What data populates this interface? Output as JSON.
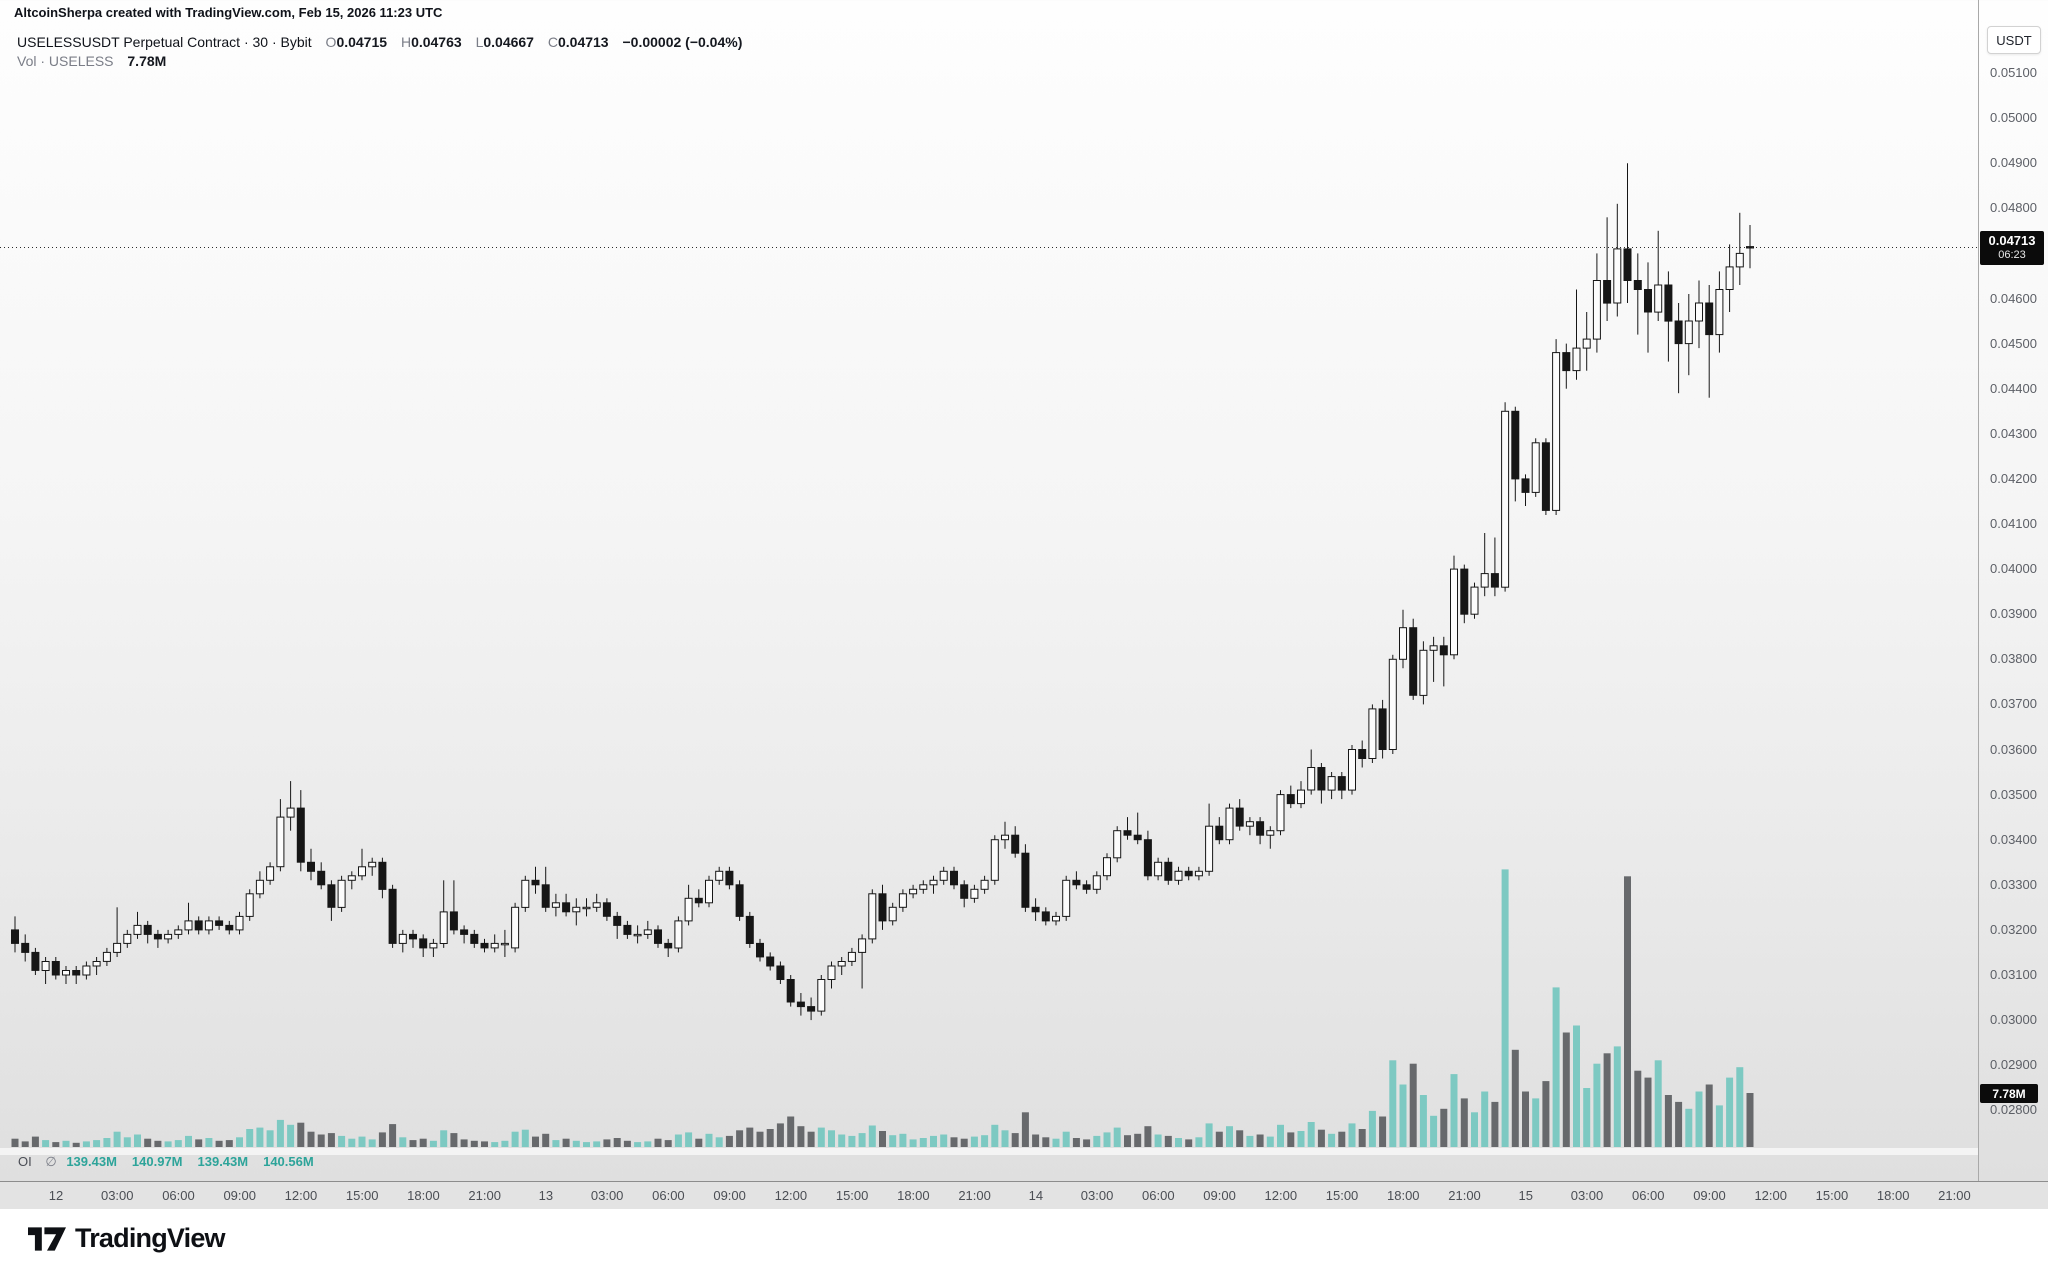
{
  "attribution": "AltcoinSherpa created with TradingView.com, Feb 15, 2026 11:23 UTC",
  "legend": {
    "symbol_line": {
      "title": "USELESSUSDT Perpetual Contract · 30 · Bybit",
      "o_label": "O",
      "o": "0.04715",
      "h_label": "H",
      "h": "0.04763",
      "l_label": "L",
      "l": "0.04667",
      "c_label": "C",
      "c": "0.04713",
      "change": "−0.00002 (−0.04%)"
    },
    "vol_line": {
      "label": "Vol · USELESS",
      "value": "7.78M"
    }
  },
  "oi_line": {
    "label": "OI",
    "symbol": "∅",
    "values": [
      "139.43M",
      "140.97M",
      "139.43M",
      "140.56M"
    ]
  },
  "price_axis": {
    "currency_button": "USDT",
    "ticks": [
      "0.05100",
      "0.05000",
      "0.04900",
      "0.04800",
      "0.04600",
      "0.04500",
      "0.04400",
      "0.04300",
      "0.04200",
      "0.04100",
      "0.04000",
      "0.03900",
      "0.03800",
      "0.03700",
      "0.03600",
      "0.03500",
      "0.03400",
      "0.03300",
      "0.03200",
      "0.03100",
      "0.03000",
      "0.02900",
      "0.02800"
    ],
    "last_price_label": {
      "price": "0.04713",
      "countdown": "06:23"
    },
    "volume_label": "7.78M"
  },
  "time_axis": {
    "labels": [
      "12",
      "03:00",
      "06:00",
      "09:00",
      "12:00",
      "15:00",
      "18:00",
      "21:00",
      "13",
      "03:00",
      "06:00",
      "09:00",
      "12:00",
      "15:00",
      "18:00",
      "21:00",
      "14",
      "03:00",
      "06:00",
      "09:00",
      "12:00",
      "15:00",
      "18:00",
      "21:00",
      "15",
      "03:00",
      "06:00",
      "09:00",
      "12:00",
      "15:00",
      "18:00",
      "21:00"
    ]
  },
  "watermark_logo": "TradingView",
  "colors": {
    "candle_up_fill": "#fcfcfc",
    "candle_down_fill": "#161616",
    "candle_stroke": "#161616",
    "vol_up": "#7dc9c2",
    "vol_down": "#67696c",
    "oi_value_text": "#2da49a",
    "label_bg": "#0b0b0b"
  },
  "chart_data": {
    "type": "candlestick",
    "symbol": "USELESSUSDT Perpetual Contract",
    "exchange": "Bybit",
    "interval": "30",
    "quote_unit": "USDT",
    "price_unit": 0.0001,
    "start_time": "Feb 11 22:00 UTC",
    "end_time": "Feb 15 11:30 UTC",
    "ylim": [
      0.0278,
      0.0512
    ],
    "last_price": 0.04713,
    "last_volume_m": 7.78,
    "candles": [
      [
        320,
        323,
        315,
        317
      ],
      [
        317,
        319,
        313,
        315
      ],
      [
        315,
        316,
        310,
        311
      ],
      [
        311,
        314,
        308,
        313
      ],
      [
        313,
        314,
        309,
        310
      ],
      [
        310,
        312,
        308,
        311
      ],
      [
        311,
        312,
        308,
        310
      ],
      [
        310,
        313,
        309,
        312
      ],
      [
        312,
        314,
        310,
        313
      ],
      [
        313,
        316,
        312,
        315
      ],
      [
        315,
        325,
        314,
        317
      ],
      [
        317,
        320,
        316,
        319
      ],
      [
        319,
        324,
        318,
        321
      ],
      [
        321,
        322,
        317,
        319
      ],
      [
        319,
        320,
        316,
        318
      ],
      [
        318,
        320,
        317,
        319
      ],
      [
        319,
        321,
        318,
        320
      ],
      [
        320,
        326,
        319,
        322
      ],
      [
        322,
        323,
        319,
        320
      ],
      [
        320,
        323,
        319,
        322
      ],
      [
        322,
        323,
        320,
        321
      ],
      [
        321,
        322,
        319,
        320
      ],
      [
        320,
        324,
        319,
        323
      ],
      [
        323,
        329,
        322,
        328
      ],
      [
        328,
        333,
        327,
        331
      ],
      [
        331,
        335,
        330,
        334
      ],
      [
        334,
        349,
        333,
        345
      ],
      [
        345,
        353,
        342,
        347
      ],
      [
        347,
        351,
        333,
        335
      ],
      [
        335,
        338,
        331,
        333
      ],
      [
        333,
        335,
        329,
        330
      ],
      [
        330,
        331,
        322,
        325
      ],
      [
        325,
        332,
        324,
        331
      ],
      [
        331,
        333,
        329,
        332
      ],
      [
        332,
        338,
        331,
        334
      ],
      [
        334,
        336,
        332,
        335
      ],
      [
        335,
        336,
        327,
        329
      ],
      [
        329,
        330,
        316,
        317
      ],
      [
        317,
        320,
        315,
        319
      ],
      [
        319,
        320,
        316,
        318
      ],
      [
        318,
        319,
        314,
        316
      ],
      [
        316,
        318,
        314,
        317
      ],
      [
        317,
        331,
        316,
        324
      ],
      [
        324,
        331,
        319,
        320
      ],
      [
        320,
        321,
        317,
        319
      ],
      [
        319,
        320,
        316,
        317
      ],
      [
        317,
        318,
        315,
        316
      ],
      [
        316,
        319,
        315,
        317
      ],
      [
        317,
        320,
        314,
        317
      ],
      [
        316,
        326,
        315,
        325
      ],
      [
        325,
        332,
        324,
        331
      ],
      [
        331,
        334,
        328,
        330
      ],
      [
        330,
        334,
        324,
        325
      ],
      [
        325,
        328,
        323,
        326
      ],
      [
        326,
        328,
        323,
        324
      ],
      [
        324,
        327,
        321,
        325
      ],
      [
        325,
        327,
        323,
        325
      ],
      [
        325,
        328,
        324,
        326
      ],
      [
        326,
        327,
        322,
        323
      ],
      [
        323,
        324,
        318,
        321
      ],
      [
        321,
        322,
        318,
        319
      ],
      [
        319,
        321,
        317,
        319
      ],
      [
        319,
        322,
        318,
        320
      ],
      [
        320,
        321,
        316,
        317
      ],
      [
        317,
        318,
        314,
        316
      ],
      [
        316,
        323,
        315,
        322
      ],
      [
        322,
        330,
        321,
        327
      ],
      [
        327,
        329,
        325,
        326
      ],
      [
        326,
        332,
        325,
        331
      ],
      [
        331,
        334,
        330,
        333
      ],
      [
        333,
        334,
        329,
        330
      ],
      [
        330,
        331,
        322,
        323
      ],
      [
        323,
        324,
        316,
        317
      ],
      [
        317,
        318,
        313,
        314
      ],
      [
        314,
        315,
        311,
        312
      ],
      [
        312,
        313,
        308,
        309
      ],
      [
        309,
        310,
        303,
        304
      ],
      [
        304,
        306,
        301,
        303
      ],
      [
        303,
        305,
        300,
        302
      ],
      [
        302,
        310,
        301,
        309
      ],
      [
        309,
        313,
        307,
        312
      ],
      [
        312,
        314,
        310,
        313
      ],
      [
        313,
        316,
        312,
        315
      ],
      [
        315,
        319,
        307,
        318
      ],
      [
        318,
        329,
        317,
        328
      ],
      [
        328,
        330,
        320,
        322
      ],
      [
        322,
        326,
        321,
        325
      ],
      [
        325,
        329,
        324,
        328
      ],
      [
        328,
        330,
        327,
        329
      ],
      [
        329,
        331,
        328,
        330
      ],
      [
        330,
        332,
        328,
        331
      ],
      [
        331,
        334,
        330,
        333
      ],
      [
        333,
        334,
        329,
        330
      ],
      [
        330,
        331,
        325,
        327
      ],
      [
        327,
        330,
        326,
        329
      ],
      [
        329,
        332,
        328,
        331
      ],
      [
        331,
        341,
        330,
        340
      ],
      [
        340,
        344,
        338,
        341
      ],
      [
        341,
        343,
        336,
        337
      ],
      [
        337,
        339,
        324,
        325
      ],
      [
        325,
        327,
        322,
        324
      ],
      [
        324,
        325,
        321,
        322
      ],
      [
        322,
        324,
        321,
        323
      ],
      [
        323,
        332,
        322,
        331
      ],
      [
        331,
        333,
        329,
        330
      ],
      [
        330,
        331,
        328,
        329
      ],
      [
        329,
        333,
        328,
        332
      ],
      [
        332,
        337,
        331,
        336
      ],
      [
        336,
        343,
        335,
        342
      ],
      [
        342,
        345,
        340,
        341
      ],
      [
        341,
        346,
        339,
        340
      ],
      [
        340,
        342,
        331,
        332
      ],
      [
        332,
        336,
        331,
        335
      ],
      [
        335,
        336,
        330,
        331
      ],
      [
        331,
        334,
        330,
        333
      ],
      [
        333,
        334,
        331,
        332
      ],
      [
        332,
        334,
        331,
        333
      ],
      [
        333,
        348,
        332,
        343
      ],
      [
        343,
        345,
        339,
        340
      ],
      [
        340,
        348,
        339,
        347
      ],
      [
        347,
        349,
        342,
        343
      ],
      [
        343,
        345,
        341,
        344
      ],
      [
        344,
        345,
        339,
        341
      ],
      [
        341,
        343,
        338,
        342
      ],
      [
        342,
        351,
        341,
        350
      ],
      [
        350,
        352,
        347,
        348
      ],
      [
        348,
        353,
        347,
        351
      ],
      [
        351,
        360,
        350,
        356
      ],
      [
        356,
        357,
        348,
        351
      ],
      [
        351,
        355,
        349,
        354
      ],
      [
        354,
        355,
        349,
        351
      ],
      [
        351,
        361,
        350,
        360
      ],
      [
        360,
        362,
        356,
        358
      ],
      [
        358,
        370,
        357,
        369
      ],
      [
        369,
        371,
        358,
        360
      ],
      [
        360,
        381,
        359,
        380
      ],
      [
        380,
        391,
        378,
        387
      ],
      [
        387,
        389,
        371,
        372
      ],
      [
        372,
        384,
        370,
        382
      ],
      [
        382,
        385,
        375,
        383
      ],
      [
        383,
        385,
        374,
        381
      ],
      [
        381,
        403,
        380,
        400
      ],
      [
        400,
        401,
        388,
        390
      ],
      [
        390,
        397,
        389,
        396
      ],
      [
        396,
        408,
        394,
        399
      ],
      [
        399,
        407,
        394,
        396
      ],
      [
        396,
        437,
        395,
        435
      ],
      [
        435,
        436,
        415,
        420
      ],
      [
        420,
        421,
        414,
        417
      ],
      [
        417,
        429,
        416,
        428
      ],
      [
        428,
        429,
        412,
        413
      ],
      [
        413,
        451,
        412,
        448
      ],
      [
        448,
        450,
        440,
        444
      ],
      [
        444,
        462,
        442,
        449
      ],
      [
        449,
        457,
        444,
        451
      ],
      [
        451,
        470,
        448,
        464
      ],
      [
        464,
        478,
        455,
        459
      ],
      [
        459,
        481,
        456,
        471
      ],
      [
        471,
        490,
        459,
        464
      ],
      [
        464,
        470,
        452,
        462
      ],
      [
        462,
        468,
        448,
        457
      ],
      [
        457,
        475,
        455,
        463
      ],
      [
        463,
        466,
        446,
        455
      ],
      [
        455,
        459,
        439,
        450
      ],
      [
        450,
        461,
        443,
        455
      ],
      [
        455,
        464,
        449,
        459
      ],
      [
        459,
        463,
        438,
        452
      ],
      [
        452,
        466,
        448,
        462
      ],
      [
        462,
        472,
        457,
        467
      ],
      [
        467,
        479,
        463,
        470
      ],
      [
        471.5,
        476.3,
        466.7,
        471.3
      ]
    ],
    "volumes_m": [
      1.2,
      0.8,
      1.5,
      1.0,
      0.7,
      0.9,
      0.6,
      0.8,
      1.0,
      1.3,
      2.2,
      1.4,
      1.8,
      1.2,
      0.9,
      0.8,
      1.0,
      1.6,
      1.1,
      1.3,
      0.9,
      1.0,
      1.4,
      2.6,
      2.8,
      2.4,
      3.9,
      3.2,
      3.5,
      2.2,
      1.8,
      2.0,
      1.6,
      1.2,
      1.5,
      1.1,
      2.1,
      3.3,
      1.4,
      1.0,
      1.2,
      0.9,
      2.4,
      2.0,
      1.1,
      0.9,
      0.8,
      0.7,
      0.9,
      2.2,
      2.5,
      1.5,
      1.9,
      1.0,
      1.2,
      0.9,
      0.7,
      0.8,
      1.1,
      1.3,
      0.9,
      0.7,
      0.8,
      1.2,
      1.0,
      1.8,
      2.1,
      1.2,
      1.9,
      1.4,
      1.6,
      2.4,
      2.8,
      2.2,
      2.6,
      3.4,
      4.4,
      3.0,
      2.2,
      2.8,
      2.4,
      1.8,
      1.6,
      2.0,
      3.1,
      2.3,
      1.7,
      1.9,
      1.1,
      1.3,
      1.6,
      1.8,
      1.4,
      1.2,
      1.5,
      1.7,
      3.2,
      2.4,
      2.0,
      5.0,
      1.8,
      1.4,
      1.2,
      2.2,
      1.3,
      1.1,
      1.6,
      2.1,
      2.8,
      1.7,
      1.9,
      3.0,
      1.8,
      1.6,
      1.3,
      1.1,
      1.4,
      3.4,
      2.2,
      3.0,
      2.4,
      1.6,
      1.8,
      1.5,
      3.2,
      2.1,
      2.3,
      3.6,
      2.5,
      1.9,
      2.2,
      3.4,
      2.6,
      5.2,
      4.4,
      12.5,
      9.0,
      12.0,
      7.5,
      4.5,
      5.5,
      10.5,
      7.0,
      5.0,
      8.0,
      6.5,
      40.0,
      14.0,
      8.0,
      7.0,
      9.5,
      23.0,
      16.5,
      17.5,
      8.5,
      12.0,
      13.5,
      14.5,
      39.0,
      11.0,
      10.0,
      12.5,
      7.5,
      6.5,
      5.5,
      8.0,
      9.0,
      6.0,
      10.0,
      11.5,
      7.78
    ]
  }
}
